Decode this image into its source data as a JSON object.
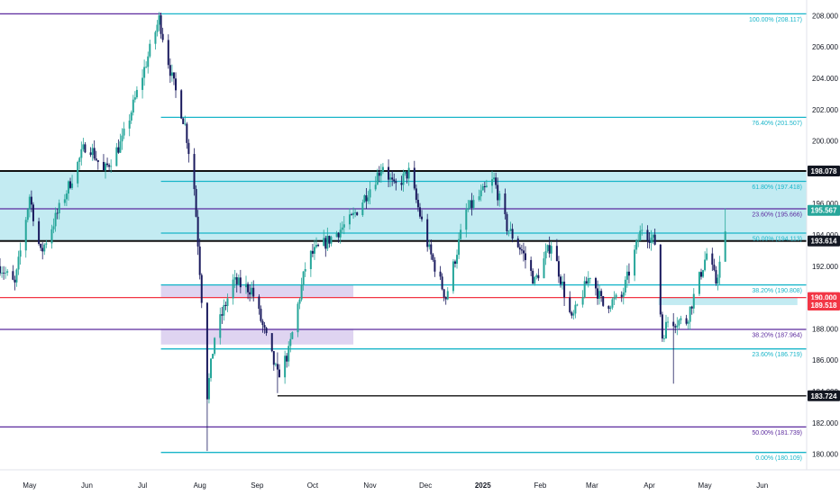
{
  "colors": {
    "bull": "#26a69a",
    "bear": "#1a1a5e",
    "fib_cyan": "#18b5c9",
    "fib_purple": "#5b2a9e",
    "support_black": "#111111",
    "support_red": "#f23645",
    "zone_cyan": "#b9e8f0",
    "zone_purple": "#d9cdee",
    "badge_dark": "#131722",
    "badge_green": "#26a69a",
    "badge_red": "#f23645"
  },
  "chart_data": {
    "type": "candlestick",
    "ylim": [
      179.0,
      209.0
    ],
    "xlim": [
      "2024-04-15",
      "2025-06-25"
    ],
    "y_ticks": [
      "180.000",
      "182.000",
      "184.000",
      "186.000",
      "188.000",
      "190.000",
      "192.000",
      "194.000",
      "196.000",
      "198.000",
      "200.000",
      "202.000",
      "204.000",
      "206.000",
      "208.000"
    ],
    "x_ticks": [
      {
        "label": "May",
        "date": "2024-05-01"
      },
      {
        "label": "Jun",
        "date": "2024-06-01"
      },
      {
        "label": "Jul",
        "date": "2024-07-01"
      },
      {
        "label": "Aug",
        "date": "2024-08-01"
      },
      {
        "label": "Sep",
        "date": "2024-09-01"
      },
      {
        "label": "Oct",
        "date": "2024-10-01"
      },
      {
        "label": "Nov",
        "date": "2024-11-01"
      },
      {
        "label": "Dec",
        "date": "2024-12-01"
      },
      {
        "label": "2025",
        "date": "2025-01-01",
        "bold": true
      },
      {
        "label": "Feb",
        "date": "2025-02-01"
      },
      {
        "label": "Mar",
        "date": "2025-03-01"
      },
      {
        "label": "Apr",
        "date": "2025-04-01"
      },
      {
        "label": "May",
        "date": "2025-05-01"
      },
      {
        "label": "Jun",
        "date": "2025-06-01"
      }
    ],
    "path_points": [
      {
        "date": "2024-04-15",
        "price": 192.0
      },
      {
        "date": "2024-04-23",
        "price": 190.8
      },
      {
        "date": "2024-05-01",
        "price": 196.5
      },
      {
        "date": "2024-05-07",
        "price": 192.8
      },
      {
        "date": "2024-05-20",
        "price": 196.5
      },
      {
        "date": "2024-06-01",
        "price": 200.0
      },
      {
        "date": "2024-06-10",
        "price": 198.0
      },
      {
        "date": "2024-06-20",
        "price": 200.0
      },
      {
        "date": "2024-07-01",
        "price": 204.2
      },
      {
        "date": "2024-07-10",
        "price": 207.8
      },
      {
        "date": "2024-07-17",
        "price": 204.0
      },
      {
        "date": "2024-07-24",
        "price": 201.0
      },
      {
        "date": "2024-07-29",
        "price": 197.0
      },
      {
        "date": "2024-08-02",
        "price": 190.0
      },
      {
        "date": "2024-08-05",
        "price": 183.8
      },
      {
        "date": "2024-08-09",
        "price": 187.5
      },
      {
        "date": "2024-08-19",
        "price": 191.0
      },
      {
        "date": "2024-08-29",
        "price": 190.5
      },
      {
        "date": "2024-09-07",
        "price": 187.0
      },
      {
        "date": "2024-09-12",
        "price": 185.0
      },
      {
        "date": "2024-09-18",
        "price": 186.5
      },
      {
        "date": "2024-09-28",
        "price": 192.5
      },
      {
        "date": "2024-10-08",
        "price": 193.5
      },
      {
        "date": "2024-10-22",
        "price": 195.0
      },
      {
        "date": "2024-11-01",
        "price": 197.0
      },
      {
        "date": "2024-11-08",
        "price": 198.5
      },
      {
        "date": "2024-11-14",
        "price": 197.0
      },
      {
        "date": "2024-11-22",
        "price": 198.0
      },
      {
        "date": "2024-12-03",
        "price": 193.0
      },
      {
        "date": "2024-12-12",
        "price": 190.0
      },
      {
        "date": "2024-12-23",
        "price": 195.5
      },
      {
        "date": "2025-01-07",
        "price": 197.5
      },
      {
        "date": "2025-01-14",
        "price": 194.5
      },
      {
        "date": "2025-01-22",
        "price": 193.0
      },
      {
        "date": "2025-01-29",
        "price": 191.0
      },
      {
        "date": "2025-02-07",
        "price": 193.5
      },
      {
        "date": "2025-02-18",
        "price": 188.5
      },
      {
        "date": "2025-02-28",
        "price": 191.5
      },
      {
        "date": "2025-03-07",
        "price": 189.5
      },
      {
        "date": "2025-03-17",
        "price": 190.0
      },
      {
        "date": "2025-03-28",
        "price": 194.5
      },
      {
        "date": "2025-04-04",
        "price": 193.5
      },
      {
        "date": "2025-04-08",
        "price": 187.5
      },
      {
        "date": "2025-04-11",
        "price": 188.5
      },
      {
        "date": "2025-04-21",
        "price": 188.5
      },
      {
        "date": "2025-05-02",
        "price": 192.8
      },
      {
        "date": "2025-05-07",
        "price": 191.0
      },
      {
        "date": "2025-05-12",
        "price": 193.9
      }
    ],
    "extremes": [
      {
        "date": "2024-07-11",
        "high": 208.0,
        "low": 206.9
      },
      {
        "date": "2024-08-05",
        "high": 186.0,
        "low": 180.2
      },
      {
        "date": "2024-09-12",
        "high": 186.5,
        "low": 183.9
      },
      {
        "date": "2025-04-14",
        "high": 189.0,
        "low": 184.5
      },
      {
        "date": "2025-05-12",
        "high": 195.7,
        "low": 192.5
      }
    ],
    "horizontal_lines": [
      {
        "price": 208.117,
        "style": "fib_purple",
        "from": "2024-04-15",
        "to": "2024-07-11"
      },
      {
        "price": 208.117,
        "style": "fib_cyan",
        "from": "2024-07-11",
        "to": "2025-06-25",
        "label": "100.00% (208.117)"
      },
      {
        "price": 201.507,
        "style": "fib_cyan",
        "from": "2024-07-11",
        "to": "2025-06-25",
        "label": "76.40% (201.507)"
      },
      {
        "price": 198.078,
        "style": "support_black",
        "from": "2024-04-15",
        "to": "2025-06-25",
        "thick": true
      },
      {
        "price": 197.418,
        "style": "fib_cyan",
        "from": "2024-07-11",
        "to": "2025-06-25",
        "label": "61.80% (197.418)"
      },
      {
        "price": 195.666,
        "style": "fib_purple",
        "from": "2024-04-15",
        "to": "2025-06-25",
        "label": "23.60% (195.666)"
      },
      {
        "price": 194.113,
        "style": "fib_cyan",
        "from": "2024-07-11",
        "to": "2025-06-25",
        "label": "50.00% (194.113)"
      },
      {
        "price": 193.614,
        "style": "support_black",
        "from": "2024-04-15",
        "to": "2025-06-25",
        "thick": true
      },
      {
        "price": 190.808,
        "style": "fib_cyan",
        "from": "2024-07-11",
        "to": "2025-06-25",
        "label": "38.20% (190.808)"
      },
      {
        "price": 190.0,
        "style": "support_red",
        "from": "2024-04-15",
        "to": "2025-06-25"
      },
      {
        "price": 187.964,
        "style": "fib_purple",
        "from": "2024-04-15",
        "to": "2025-06-25",
        "label": "38.20% (187.964)"
      },
      {
        "price": 186.719,
        "style": "fib_cyan",
        "from": "2024-07-11",
        "to": "2025-06-25",
        "label": "23.60% (186.719)"
      },
      {
        "price": 183.724,
        "style": "support_black",
        "from": "2024-09-12",
        "to": "2025-06-25"
      },
      {
        "price": 181.739,
        "style": "fib_purple",
        "from": "2024-04-15",
        "to": "2025-06-25",
        "label": "50.00% (181.739)"
      },
      {
        "price": 180.109,
        "style": "fib_cyan",
        "from": "2024-07-11",
        "to": "2025-06-25",
        "label": "0.00% (180.109)"
      }
    ],
    "zones": [
      {
        "from_price": 193.614,
        "to_price": 198.078,
        "from": "2024-04-15",
        "to": "2025-06-25",
        "style": "zone_cyan"
      },
      {
        "from_price": 190.0,
        "to_price": 190.808,
        "from": "2024-07-11",
        "to": "2024-10-23",
        "style": "zone_purple"
      },
      {
        "from_price": 187.0,
        "to_price": 188.0,
        "from": "2024-07-11",
        "to": "2024-10-23",
        "style": "zone_purple"
      },
      {
        "from_price": 189.518,
        "to_price": 190.0,
        "from": "2025-04-06",
        "to": "2025-06-20",
        "style": "zone_cyan"
      }
    ],
    "price_badges": [
      {
        "text": "198.078",
        "price": 198.078,
        "style": "badge_dark"
      },
      {
        "text": "195.567",
        "price": 195.567,
        "style": "badge_green"
      },
      {
        "text": "193.614",
        "price": 193.614,
        "style": "badge_dark"
      },
      {
        "text": "190.000",
        "price": 190.0,
        "style": "badge_red"
      },
      {
        "text": "189.518",
        "price": 189.518,
        "style": "badge_red"
      },
      {
        "text": "183.724",
        "price": 183.724,
        "style": "badge_dark"
      }
    ]
  }
}
